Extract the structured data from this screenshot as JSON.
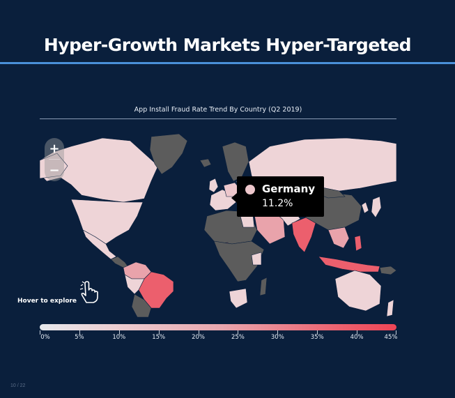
{
  "slide": {
    "title": "Hyper-Growth Markets Hyper-Targeted",
    "page_number": "10 / 22"
  },
  "map": {
    "subtitle": "App Install Fraud Rate Trend By Country (Q2 2019)",
    "hint": "Hover to explore",
    "zoom_in_label": "+",
    "zoom_out_label": "−",
    "colors": {
      "no_data": "#5c5c5c",
      "low": "#eed4d7",
      "mid": "#e9a3ab",
      "high": "#ec5f6d",
      "background": "#0a1f3c"
    },
    "tooltip": {
      "country": "Germany",
      "value": "11.2%",
      "dot_color": "#edc7cc"
    },
    "legend": {
      "labels": [
        "0%",
        "5%",
        "10%",
        "15%",
        "20%",
        "25%",
        "30%",
        "35%",
        "40%",
        "45%"
      ]
    }
  }
}
